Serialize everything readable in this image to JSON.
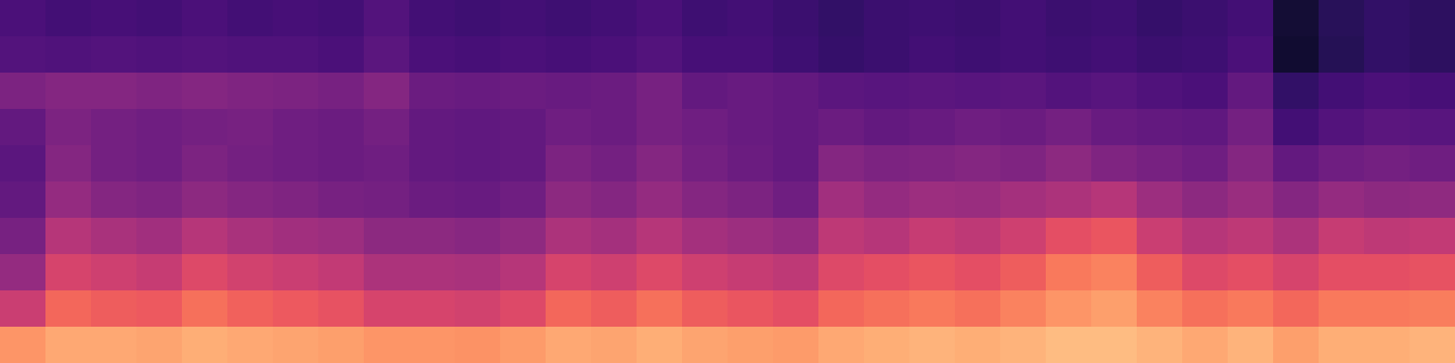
{
  "chart_data": {
    "type": "heatmap",
    "color": "magma",
    "tick_labels": false,
    "color_range": [
      0,
      1
    ],
    "cells": [
      [
        0.24,
        0.22,
        0.23,
        0.22,
        0.24,
        0.22,
        0.23,
        0.22,
        0.26,
        0.22,
        0.21,
        0.22,
        0.21,
        0.22,
        0.24,
        0.21,
        0.22,
        0.2,
        0.18,
        0.2,
        0.21,
        0.2,
        0.22,
        0.2,
        0.21,
        0.19,
        0.2,
        0.22,
        0.1,
        0.16,
        0.18,
        0.17
      ],
      [
        0.26,
        0.25,
        0.26,
        0.25,
        0.26,
        0.25,
        0.25,
        0.24,
        0.28,
        0.24,
        0.23,
        0.24,
        0.23,
        0.24,
        0.26,
        0.23,
        0.23,
        0.21,
        0.19,
        0.2,
        0.22,
        0.21,
        0.22,
        0.21,
        0.22,
        0.2,
        0.21,
        0.24,
        0.09,
        0.15,
        0.18,
        0.17
      ],
      [
        0.36,
        0.38,
        0.38,
        0.37,
        0.38,
        0.37,
        0.36,
        0.35,
        0.38,
        0.32,
        0.31,
        0.32,
        0.31,
        0.32,
        0.35,
        0.3,
        0.31,
        0.3,
        0.28,
        0.27,
        0.28,
        0.27,
        0.28,
        0.26,
        0.27,
        0.25,
        0.24,
        0.3,
        0.18,
        0.22,
        0.24,
        0.23
      ],
      [
        0.3,
        0.36,
        0.34,
        0.33,
        0.34,
        0.35,
        0.33,
        0.32,
        0.34,
        0.3,
        0.29,
        0.3,
        0.33,
        0.32,
        0.35,
        0.33,
        0.31,
        0.3,
        0.32,
        0.3,
        0.31,
        0.33,
        0.32,
        0.34,
        0.31,
        0.3,
        0.29,
        0.34,
        0.22,
        0.26,
        0.28,
        0.27
      ],
      [
        0.28,
        0.38,
        0.34,
        0.33,
        0.36,
        0.34,
        0.33,
        0.32,
        0.33,
        0.3,
        0.29,
        0.3,
        0.36,
        0.34,
        0.38,
        0.34,
        0.32,
        0.3,
        0.38,
        0.36,
        0.37,
        0.38,
        0.37,
        0.4,
        0.37,
        0.35,
        0.33,
        0.38,
        0.3,
        0.33,
        0.34,
        0.33
      ],
      [
        0.3,
        0.42,
        0.38,
        0.37,
        0.4,
        0.38,
        0.37,
        0.35,
        0.34,
        0.32,
        0.31,
        0.33,
        0.4,
        0.38,
        0.42,
        0.38,
        0.36,
        0.33,
        0.45,
        0.42,
        0.44,
        0.43,
        0.46,
        0.48,
        0.5,
        0.44,
        0.4,
        0.43,
        0.38,
        0.42,
        0.4,
        0.41
      ],
      [
        0.35,
        0.5,
        0.47,
        0.45,
        0.5,
        0.47,
        0.45,
        0.44,
        0.4,
        0.4,
        0.39,
        0.41,
        0.48,
        0.46,
        0.5,
        0.46,
        0.44,
        0.42,
        0.52,
        0.5,
        0.54,
        0.52,
        0.56,
        0.62,
        0.64,
        0.55,
        0.5,
        0.52,
        0.48,
        0.54,
        0.52,
        0.53
      ],
      [
        0.42,
        0.58,
        0.56,
        0.54,
        0.6,
        0.57,
        0.55,
        0.53,
        0.48,
        0.48,
        0.47,
        0.5,
        0.58,
        0.56,
        0.6,
        0.56,
        0.54,
        0.52,
        0.6,
        0.62,
        0.64,
        0.62,
        0.66,
        0.72,
        0.74,
        0.66,
        0.6,
        0.62,
        0.58,
        0.62,
        0.62,
        0.63
      ],
      [
        0.55,
        0.68,
        0.66,
        0.65,
        0.7,
        0.67,
        0.65,
        0.63,
        0.58,
        0.58,
        0.57,
        0.6,
        0.68,
        0.66,
        0.7,
        0.66,
        0.64,
        0.62,
        0.68,
        0.7,
        0.72,
        0.7,
        0.74,
        0.78,
        0.8,
        0.74,
        0.7,
        0.72,
        0.68,
        0.72,
        0.72,
        0.73
      ],
      [
        0.78,
        0.82,
        0.82,
        0.81,
        0.83,
        0.82,
        0.81,
        0.8,
        0.78,
        0.78,
        0.77,
        0.79,
        0.82,
        0.81,
        0.83,
        0.81,
        0.8,
        0.79,
        0.82,
        0.83,
        0.84,
        0.83,
        0.84,
        0.86,
        0.86,
        0.84,
        0.82,
        0.84,
        0.8,
        0.83,
        0.83,
        0.84
      ]
    ]
  }
}
